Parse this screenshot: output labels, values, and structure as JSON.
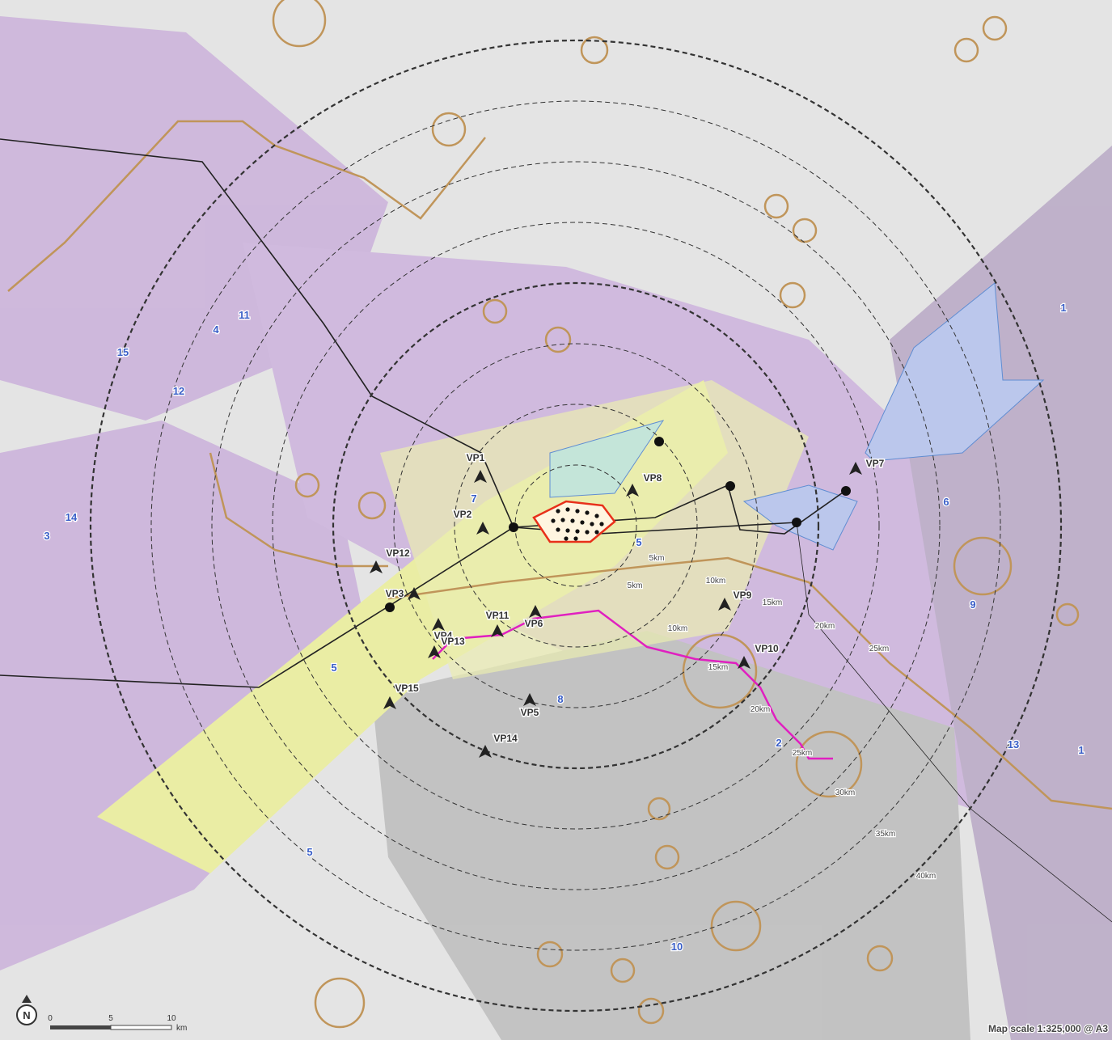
{
  "viewpoints": [
    "VP1",
    "VP2",
    "VP3",
    "VP4",
    "VP5",
    "VP6",
    "VP7",
    "VP8",
    "VP9",
    "VP10",
    "VP11",
    "VP12",
    "VP13",
    "VP14",
    "VP15"
  ],
  "distance_labels": [
    "5km",
    "5km",
    "10km",
    "10km",
    "15km",
    "15km",
    "20km",
    "20km",
    "25km",
    "25km",
    "30km",
    "35km",
    "40km"
  ],
  "area_labels": [
    "1",
    "1",
    "2",
    "3",
    "4",
    "5",
    "5",
    "5",
    "6",
    "7",
    "8",
    "9",
    "10",
    "11",
    "12",
    "13",
    "14",
    "15"
  ],
  "north_arrow": "N",
  "scale_bar": {
    "ticks": [
      "0",
      "5",
      "10"
    ],
    "unit": "km"
  },
  "map_scale": "Map scale 1:325,000 @ A3"
}
